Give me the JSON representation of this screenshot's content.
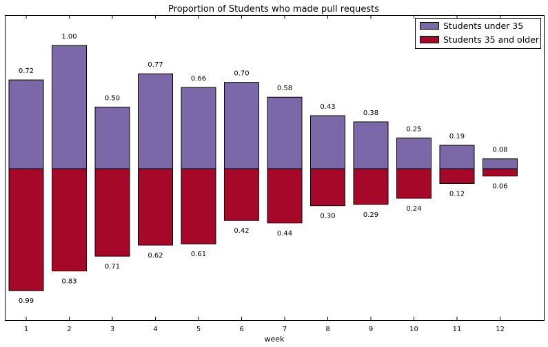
{
  "chart_data": {
    "type": "bar",
    "title": "Proportion of Students who made pull requests",
    "xlabel": "week",
    "ylabel": "",
    "categories": [
      "1",
      "2",
      "3",
      "4",
      "5",
      "6",
      "7",
      "8",
      "9",
      "10",
      "11",
      "12"
    ],
    "orientation": "mirrored",
    "series": [
      {
        "name": "Students under 35",
        "direction": "up",
        "color": "#7b68a8",
        "values": [
          0.72,
          1.0,
          0.5,
          0.77,
          0.66,
          0.7,
          0.58,
          0.43,
          0.38,
          0.25,
          0.19,
          0.08
        ],
        "labels": [
          "0.72",
          "1.00",
          "0.50",
          "0.77",
          "0.66",
          "0.70",
          "0.58",
          "0.43",
          "0.38",
          "0.25",
          "0.19",
          "0.08"
        ]
      },
      {
        "name": "Students 35 and older",
        "direction": "down",
        "color": "#a50829",
        "values": [
          0.99,
          0.83,
          0.71,
          0.62,
          0.61,
          0.42,
          0.44,
          0.3,
          0.29,
          0.24,
          0.12,
          0.06
        ],
        "labels": [
          "0.99",
          "0.83",
          "0.71",
          "0.62",
          "0.61",
          "0.42",
          "0.44",
          "0.30",
          "0.29",
          "0.24",
          "0.12",
          "0.06"
        ]
      }
    ],
    "ylim": [
      -1.25,
      1.2
    ],
    "grid": false,
    "legend_position": "top-right"
  }
}
